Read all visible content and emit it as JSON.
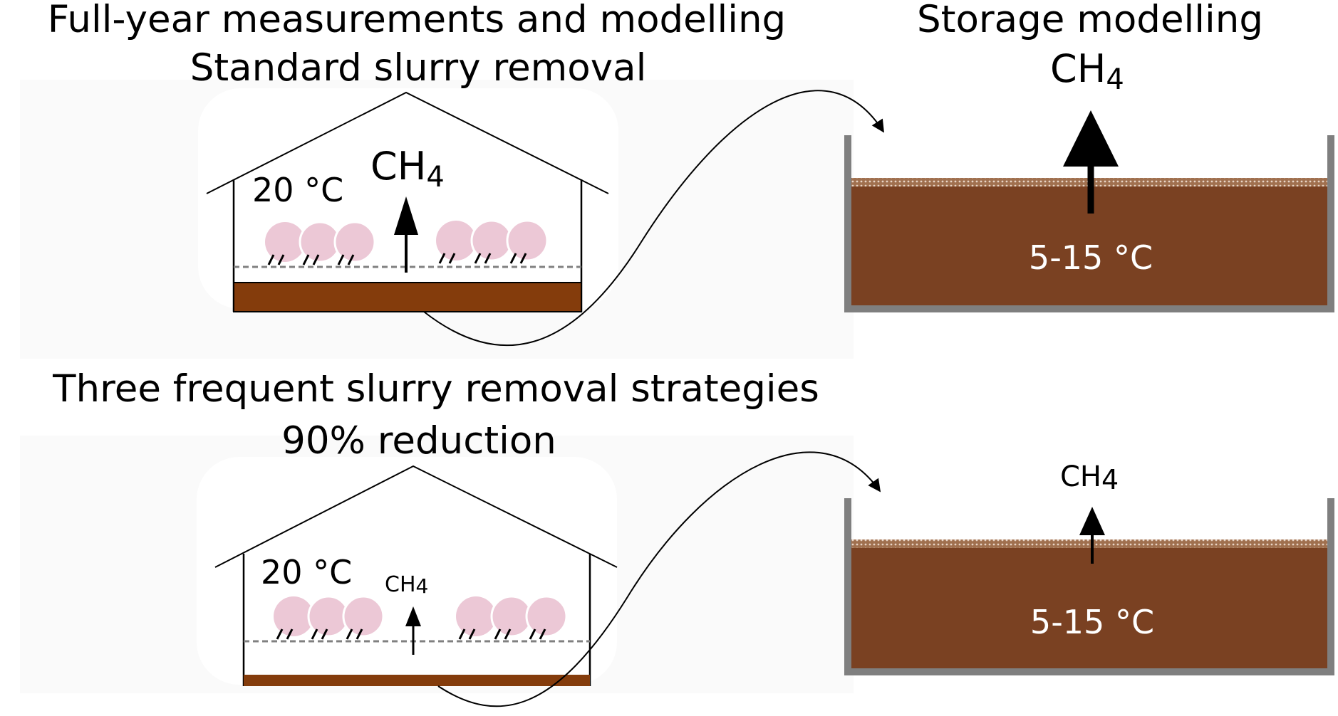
{
  "top": {
    "title_line1": "Full-year measurements and modelling",
    "title_line2": "Standard slurry removal",
    "barn_temp": "20 °C",
    "barn_gas": "CH",
    "barn_gas_sub": "4",
    "storage_title": "Storage modelling",
    "storage_gas": "CH",
    "storage_gas_sub": "4",
    "storage_temp": "5-15 °C"
  },
  "bottom": {
    "title_line1": "Three frequent slurry removal strategies",
    "title_line2": "90% reduction",
    "barn_temp": "20 °C",
    "barn_gas": "CH",
    "barn_gas_sub": "4",
    "storage_gas": "CH",
    "storage_gas_sub": "4",
    "storage_temp": "5-15 °C"
  },
  "colors": {
    "slurry_barn": "#843c0c",
    "slurry_storage": "#7a4122",
    "pig": "#ecc8d6",
    "tank_wall": "#7f7f7f",
    "panel_bg": "#fafafa",
    "temp_text_storage": "#ffffff"
  }
}
